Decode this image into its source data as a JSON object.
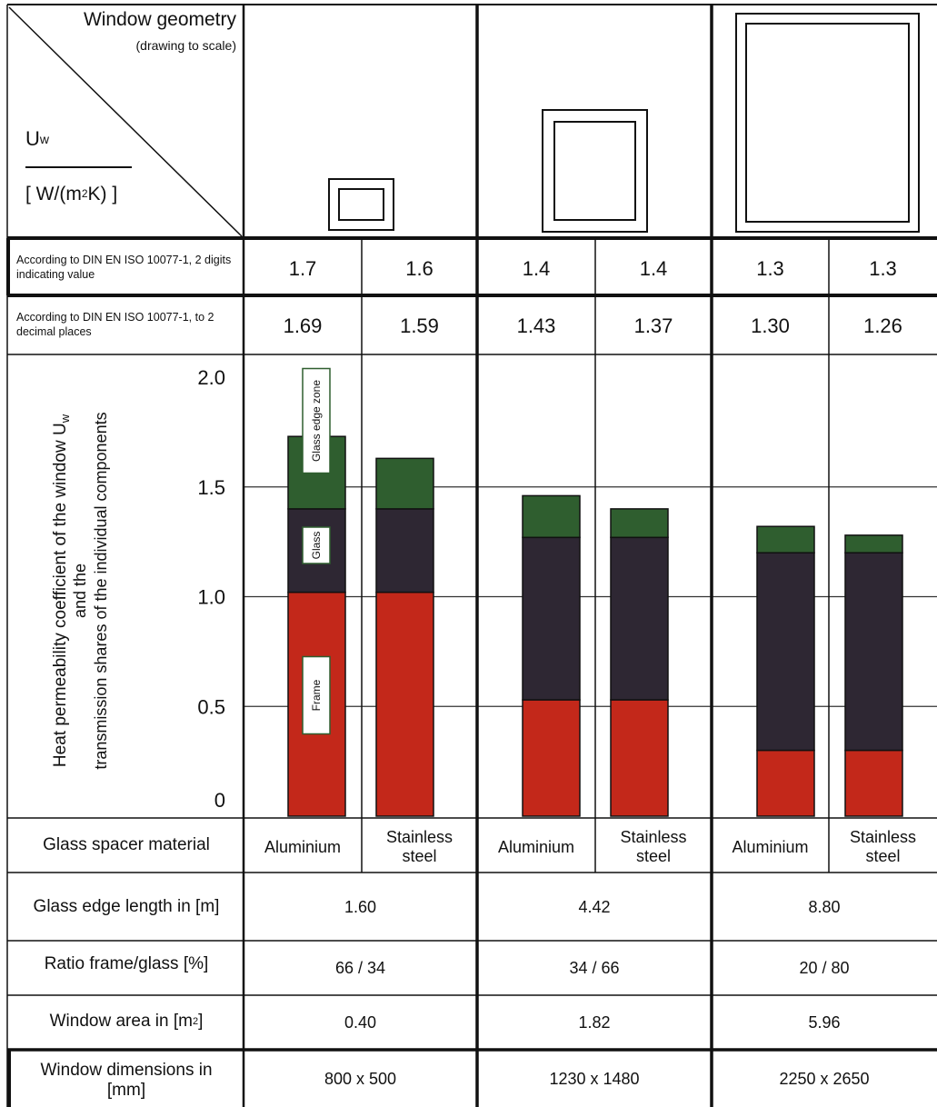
{
  "header": {
    "title": "Window geometry",
    "subtitle": "(drawing to scale)",
    "u_main": "U",
    "u_sub": "w",
    "unit_pre": "[ W/(m",
    "unit_sup": "2",
    "unit_post": "K) ]"
  },
  "rows": {
    "din_2digits_label": "According to DIN EN ISO 10077-1, 2 digits indicating value",
    "din_2digits_values": [
      "1.7",
      "1.6",
      "1.4",
      "1.4",
      "1.3",
      "1.3"
    ],
    "din_2decimals_label": "According to DIN EN ISO 10077-1, to 2 decimal places",
    "din_2decimals_values": [
      "1.69",
      "1.59",
      "1.43",
      "1.37",
      "1.30",
      "1.26"
    ],
    "spacer_label": "Glass spacer material",
    "spacer_values": [
      "Aluminium",
      "Stainless steel",
      "Aluminium",
      "Stainless steel",
      "Aluminium",
      "Stainless steel"
    ],
    "edge_label": "Glass edge length in [m]",
    "edge_values": [
      "1.60",
      "4.42",
      "8.80"
    ],
    "ratio_label": "Ratio frame/glass [%]",
    "ratio_values": [
      "66 / 34",
      "34 / 66",
      "20 / 80"
    ],
    "area_label_pre": "Window area in [m",
    "area_label_sup": "2",
    "area_label_post": "]",
    "area_values": [
      "0.40",
      "1.82",
      "5.96"
    ],
    "dims_label": "Window dimensions in [mm]",
    "dims_values": [
      "800 x 500",
      "1230 x 1480",
      "2250 x 2650"
    ]
  },
  "chart_data": {
    "type": "bar",
    "stacked": true,
    "ylabel_lines": [
      "Heat permeability coefficient of the window U",
      "and the",
      "transmission shares of the individual components"
    ],
    "ylabel_sub": "w",
    "ylim": [
      0,
      2.0
    ],
    "yticks": [
      "2.0",
      "1.5",
      "1.0",
      "0.5",
      "0"
    ],
    "ytick_values": [
      2.0,
      1.5,
      1.0,
      0.5,
      0
    ],
    "grid": true,
    "categories": [
      "Aluminium",
      "Stainless steel",
      "Aluminium",
      "Stainless steel",
      "Aluminium",
      "Stainless steel"
    ],
    "series": [
      {
        "name": "Frame",
        "color": "#c3281a",
        "values": [
          1.02,
          1.02,
          0.53,
          0.53,
          0.3,
          0.3
        ]
      },
      {
        "name": "Glass",
        "color": "#2e2733",
        "values": [
          0.38,
          0.38,
          0.74,
          0.74,
          0.9,
          0.9
        ]
      },
      {
        "name": "Glass edge zone",
        "color": "#2f5e2f",
        "values": [
          0.33,
          0.23,
          0.19,
          0.13,
          0.12,
          0.08
        ]
      }
    ]
  }
}
